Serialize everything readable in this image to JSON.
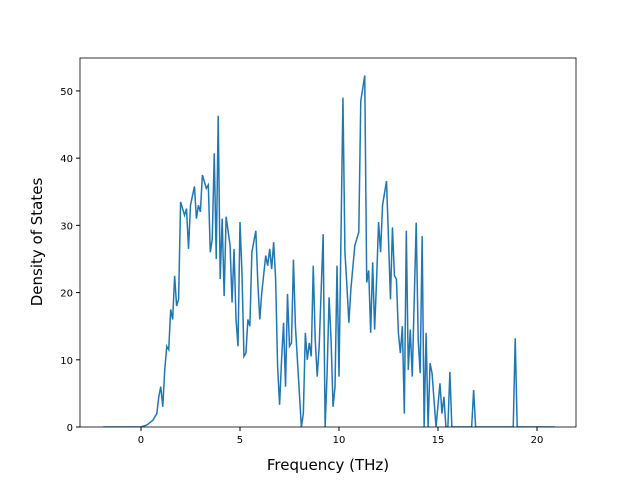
{
  "chart_data": {
    "type": "line",
    "x_label": "Frequency (THz)",
    "y_label": "Density of States",
    "x": [
      -1.9,
      -1,
      0,
      0.3,
      0.6,
      0.8,
      0.9,
      1.0,
      1.1,
      1.2,
      1.3,
      1.4,
      1.5,
      1.6,
      1.7,
      1.8,
      1.9,
      2.0,
      2.2,
      2.3,
      2.4,
      2.5,
      2.7,
      2.8,
      2.9,
      3.0,
      3.1,
      3.3,
      3.4,
      3.5,
      3.6,
      3.7,
      3.8,
      3.9,
      4.0,
      4.1,
      4.2,
      4.3,
      4.5,
      4.6,
      4.7,
      4.8,
      4.9,
      5.0,
      5.1,
      5.2,
      5.3,
      5.4,
      5.5,
      5.6,
      5.8,
      5.9,
      6.0,
      6.1,
      6.3,
      6.4,
      6.5,
      6.6,
      6.7,
      6.8,
      6.9,
      7.0,
      7.1,
      7.2,
      7.3,
      7.4,
      7.5,
      7.6,
      7.7,
      7.8,
      8.0,
      8.1,
      8.2,
      8.3,
      8.4,
      8.5,
      8.6,
      8.7,
      8.8,
      8.9,
      9.0,
      9.2,
      9.3,
      9.4,
      9.5,
      9.6,
      9.7,
      9.8,
      9.9,
      10.0,
      10.2,
      10.3,
      10.4,
      10.5,
      10.6,
      10.8,
      11.0,
      11.1,
      11.3,
      11.4,
      11.5,
      11.6,
      11.7,
      11.8,
      11.9,
      12.0,
      12.1,
      12.2,
      12.4,
      12.5,
      12.6,
      12.7,
      12.8,
      12.9,
      13.0,
      13.1,
      13.2,
      13.3,
      13.4,
      13.5,
      13.6,
      13.7,
      13.9,
      14.0,
      14.1,
      14.2,
      14.3,
      14.4,
      14.5,
      14.6,
      14.7,
      14.8,
      14.9,
      15.1,
      15.2,
      15.3,
      15.4,
      15.5,
      15.6,
      15.7,
      16.7,
      16.8,
      16.9,
      18.8,
      18.9,
      19.0,
      20.9
    ],
    "series": [
      {
        "color": "#1f77b4",
        "values": [
          0,
          0,
          0,
          0.3,
          1,
          2,
          4.5,
          6,
          3,
          8.5,
          12,
          11.5,
          17.5,
          16,
          22.5,
          18,
          19,
          33.5,
          31.5,
          32.5,
          26.5,
          33,
          35.8,
          31,
          33,
          32,
          37.5,
          35.5,
          36,
          26,
          28,
          40.7,
          25,
          46.3,
          22,
          31,
          19.5,
          31.3,
          27,
          18.5,
          26.5,
          16,
          12,
          30.5,
          23,
          10.5,
          11,
          16,
          15,
          26,
          29.2,
          21.5,
          16,
          20,
          25.5,
          24,
          26.5,
          23.5,
          27.5,
          22,
          9,
          3.3,
          10,
          15.5,
          6,
          19.8,
          12,
          12.5,
          24.9,
          15,
          5,
          0,
          2,
          14,
          10,
          12.5,
          10.5,
          24,
          13,
          7.5,
          12,
          28.7,
          0,
          8,
          19.3,
          13,
          3,
          6,
          24,
          7.5,
          49,
          26,
          21,
          15.5,
          20.5,
          27,
          29,
          48.5,
          52.3,
          21.5,
          23.3,
          14,
          24.5,
          14.5,
          22,
          30.5,
          26,
          33,
          36.6,
          28,
          19,
          29.7,
          22.5,
          22,
          14,
          11,
          15,
          2,
          29.2,
          8.5,
          14.5,
          7.5,
          30.4,
          13,
          8,
          28.4,
          0,
          14,
          0,
          9.5,
          8,
          4,
          0,
          6.5,
          2,
          4.5,
          0,
          0,
          8.2,
          0,
          0,
          5.5,
          0,
          0,
          13.2,
          0,
          0
        ]
      }
    ],
    "xlim": [
      -3.08,
      21.97
    ],
    "ylim": [
      0,
      54.9
    ],
    "xticks": [
      0,
      5,
      10,
      15,
      20
    ],
    "yticks": [
      0,
      10,
      20,
      30,
      40,
      50
    ]
  }
}
